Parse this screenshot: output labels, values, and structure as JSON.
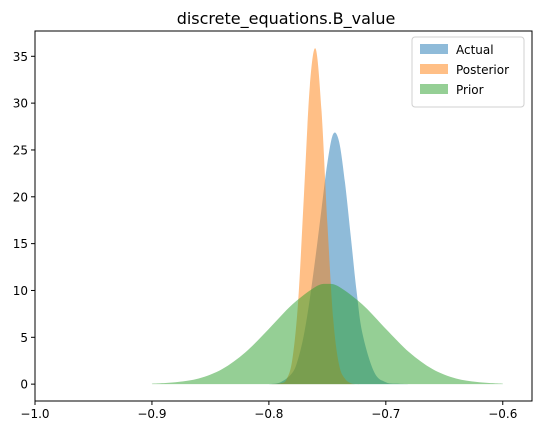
{
  "chart_data": {
    "type": "area",
    "title": "discrete_equations.B_value",
    "xlabel": "",
    "ylabel": "",
    "xlim": [
      -1.0,
      -0.575
    ],
    "ylim": [
      -1.8,
      37.7
    ],
    "xticks": [
      -1.0,
      -0.9,
      -0.8,
      -0.7,
      -0.6
    ],
    "xtick_labels": [
      "−1.0",
      "−0.9",
      "−0.8",
      "−0.7",
      "−0.6"
    ],
    "yticks": [
      0,
      5,
      10,
      15,
      20,
      25,
      30,
      35
    ],
    "ytick_labels": [
      "0",
      "5",
      "10",
      "15",
      "20",
      "25",
      "30",
      "35"
    ],
    "grid": false,
    "legend_position": "top-right",
    "series": [
      {
        "name": "Actual",
        "color": "#1f77b4",
        "opacity": 0.5,
        "x": [
          -0.8,
          -0.79,
          -0.78,
          -0.775,
          -0.77,
          -0.765,
          -0.76,
          -0.755,
          -0.75,
          -0.745,
          -0.74,
          -0.735,
          -0.73,
          -0.725,
          -0.72,
          -0.71,
          -0.7,
          -0.69,
          -0.68
        ],
        "y": [
          0.0,
          0.2,
          1.2,
          2.7,
          5.3,
          9.1,
          13.7,
          18.7,
          23.6,
          26.7,
          25.9,
          21.6,
          15.8,
          9.9,
          5.4,
          1.3,
          0.2,
          0.05,
          0.0
        ]
      },
      {
        "name": "Posterior",
        "color": "#ff7f0e",
        "opacity": 0.5,
        "x": [
          -0.8,
          -0.79,
          -0.785,
          -0.78,
          -0.775,
          -0.77,
          -0.765,
          -0.76,
          -0.755,
          -0.75,
          -0.745,
          -0.74,
          -0.735,
          -0.73,
          -0.725,
          -0.72,
          -0.71
        ],
        "y": [
          0.0,
          0.1,
          0.5,
          2.6,
          8.8,
          20.2,
          31.8,
          35.8,
          29.2,
          17.2,
          7.0,
          2.1,
          0.6,
          0.1,
          0.0,
          0.0,
          0.0
        ]
      },
      {
        "name": "Prior",
        "color": "#2ca02c",
        "opacity": 0.5,
        "x": [
          -0.9,
          -0.88,
          -0.86,
          -0.84,
          -0.82,
          -0.8,
          -0.78,
          -0.76,
          -0.75,
          -0.74,
          -0.72,
          -0.7,
          -0.68,
          -0.66,
          -0.64,
          -0.62,
          -0.6
        ],
        "y": [
          0.05,
          0.2,
          0.6,
          1.6,
          3.4,
          5.9,
          8.5,
          10.4,
          10.7,
          10.4,
          8.5,
          5.9,
          3.4,
          1.6,
          0.6,
          0.2,
          0.05
        ]
      }
    ]
  }
}
